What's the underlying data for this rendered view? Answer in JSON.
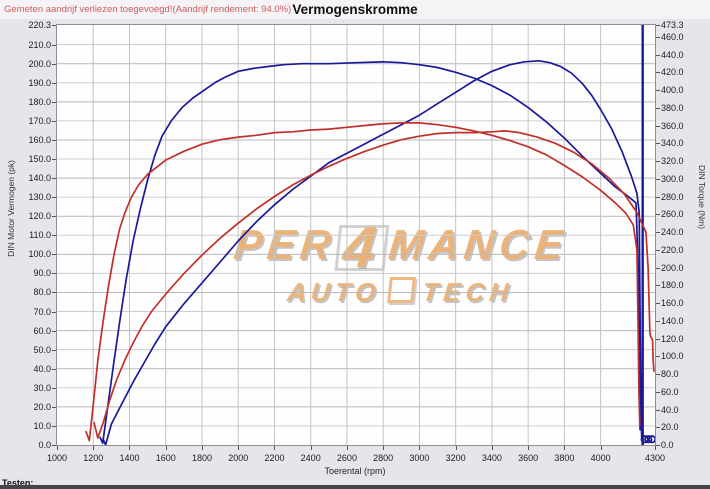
{
  "header": {
    "notice": "Gemeten aandrijf verliezen toegevoegd!(Aandrijf rendement: 94.0%)",
    "title": "Vermogenskromme"
  },
  "footer": {
    "partial_label": "Testen:"
  },
  "watermark": {
    "line1_left": "PER",
    "line1_digit": "4",
    "line1_right": "MANCE",
    "line2_left": "AUTO",
    "line2_right": "TECH"
  },
  "colors": {
    "notice_red": "#cd5c5c",
    "curve_blue": "#19199a",
    "curve_red": "#c0302a",
    "grid_gray": "#c7c7c7",
    "watermark_orange": "#e9a45c"
  },
  "chart_data": {
    "type": "line",
    "title": "Vermogenskromme",
    "xlabel": "Toerental (rpm)",
    "ylabel_left": "DIN Motor Vermogen (pk)",
    "ylabel_right": "DIN Torque (Nm)",
    "x_range": [
      1000,
      4300
    ],
    "y_left_range": [
      0,
      220.3
    ],
    "y_right_range": [
      0,
      473.3
    ],
    "grid": true,
    "legend": "none",
    "x_ticks": [
      1000,
      1200,
      1400,
      1600,
      1800,
      2000,
      2200,
      2400,
      2600,
      2800,
      3000,
      3200,
      3400,
      3600,
      3800,
      4000,
      4300
    ],
    "y_left_ticks": [
      0,
      10,
      20,
      30,
      40,
      50,
      60,
      70,
      80,
      90,
      100,
      110,
      120,
      130,
      140,
      150,
      160,
      170,
      180,
      190,
      200,
      210,
      220.3
    ],
    "y_right_ticks": [
      0,
      20,
      40,
      60,
      80,
      100,
      120,
      140,
      160,
      180,
      200,
      220,
      240,
      260,
      280,
      300,
      320,
      340,
      360,
      380,
      400,
      420,
      440,
      460,
      473.3
    ],
    "marker_line": {
      "rpm": 4232,
      "color": "#19199a"
    },
    "end_markers": {
      "axis": "left",
      "color": "#19199a",
      "points": [
        [
          4243,
          3
        ],
        [
          4263,
          3
        ],
        [
          4284,
          3
        ]
      ]
    },
    "series": [
      {
        "name": "power-run-a-pk",
        "color": "#19199a",
        "axis": "left",
        "peak": "201 pk @ 2800 rpm",
        "points": [
          [
            1238,
            4
          ],
          [
            1252,
            1
          ],
          [
            1280,
            20
          ],
          [
            1312,
            42
          ],
          [
            1345,
            64
          ],
          [
            1380,
            86
          ],
          [
            1420,
            107
          ],
          [
            1460,
            124
          ],
          [
            1500,
            139
          ],
          [
            1540,
            152
          ],
          [
            1580,
            162
          ],
          [
            1630,
            170
          ],
          [
            1690,
            177
          ],
          [
            1750,
            182
          ],
          [
            1810,
            186
          ],
          [
            1870,
            190
          ],
          [
            1930,
            193
          ],
          [
            2000,
            196
          ],
          [
            2080,
            197.5
          ],
          [
            2160,
            198.5
          ],
          [
            2250,
            199.5
          ],
          [
            2350,
            200
          ],
          [
            2500,
            200
          ],
          [
            2650,
            200.5
          ],
          [
            2800,
            201
          ],
          [
            2900,
            200.5
          ],
          [
            3000,
            199.5
          ],
          [
            3100,
            198
          ],
          [
            3200,
            195.5
          ],
          [
            3300,
            192.5
          ],
          [
            3400,
            188.5
          ],
          [
            3500,
            183.5
          ],
          [
            3600,
            177
          ],
          [
            3700,
            169.5
          ],
          [
            3800,
            161
          ],
          [
            3900,
            151.5
          ],
          [
            4000,
            142.5
          ],
          [
            4080,
            135.5
          ],
          [
            4150,
            130.5
          ],
          [
            4195,
            127
          ],
          [
            4207,
            95
          ],
          [
            4213,
            35
          ],
          [
            4218,
            8
          ]
        ]
      },
      {
        "name": "power-run-b-pk",
        "color": "#19199a",
        "axis": "left",
        "peak": "201.5 pk @ 3660 rpm",
        "points": [
          [
            1255,
            3
          ],
          [
            1268,
            0
          ],
          [
            1300,
            11
          ],
          [
            1360,
            22
          ],
          [
            1420,
            33
          ],
          [
            1480,
            43
          ],
          [
            1540,
            53
          ],
          [
            1600,
            62
          ],
          [
            1700,
            74
          ],
          [
            1800,
            85
          ],
          [
            1900,
            96
          ],
          [
            2000,
            107
          ],
          [
            2100,
            117
          ],
          [
            2200,
            126
          ],
          [
            2300,
            134
          ],
          [
            2400,
            141
          ],
          [
            2500,
            148
          ],
          [
            2600,
            153
          ],
          [
            2700,
            158
          ],
          [
            2800,
            163
          ],
          [
            2900,
            168
          ],
          [
            3000,
            173
          ],
          [
            3100,
            179
          ],
          [
            3200,
            185
          ],
          [
            3300,
            191
          ],
          [
            3400,
            196
          ],
          [
            3500,
            199.5
          ],
          [
            3580,
            201
          ],
          [
            3660,
            201.5
          ],
          [
            3720,
            200.5
          ],
          [
            3780,
            198.5
          ],
          [
            3840,
            195
          ],
          [
            3900,
            189.5
          ],
          [
            3950,
            183.5
          ],
          [
            4000,
            176
          ],
          [
            4060,
            166
          ],
          [
            4120,
            153.5
          ],
          [
            4170,
            141
          ],
          [
            4200,
            132
          ],
          [
            4213,
            122
          ],
          [
            4219,
            55
          ],
          [
            4223,
            15
          ],
          [
            4227,
            3
          ]
        ]
      },
      {
        "name": "torque-run-a-nm",
        "color": "#c0302a",
        "axis": "right",
        "peak": "363 Nm @ 2950 rpm",
        "points": [
          [
            1160,
            15
          ],
          [
            1178,
            5
          ],
          [
            1200,
            45
          ],
          [
            1225,
            95
          ],
          [
            1255,
            140
          ],
          [
            1285,
            180
          ],
          [
            1315,
            215
          ],
          [
            1345,
            243
          ],
          [
            1375,
            262
          ],
          [
            1410,
            279
          ],
          [
            1450,
            293
          ],
          [
            1500,
            305
          ],
          [
            1550,
            313
          ],
          [
            1600,
            321
          ],
          [
            1700,
            331
          ],
          [
            1800,
            339
          ],
          [
            1900,
            344
          ],
          [
            2000,
            347
          ],
          [
            2100,
            349
          ],
          [
            2200,
            352
          ],
          [
            2300,
            353
          ],
          [
            2400,
            355
          ],
          [
            2500,
            356
          ],
          [
            2600,
            358
          ],
          [
            2700,
            360
          ],
          [
            2800,
            362
          ],
          [
            2900,
            363
          ],
          [
            3000,
            363
          ],
          [
            3100,
            361
          ],
          [
            3200,
            358
          ],
          [
            3300,
            354
          ],
          [
            3400,
            349
          ],
          [
            3500,
            343
          ],
          [
            3600,
            336
          ],
          [
            3700,
            327
          ],
          [
            3800,
            315
          ],
          [
            3900,
            302
          ],
          [
            4000,
            287
          ],
          [
            4080,
            273
          ],
          [
            4140,
            261
          ],
          [
            4180,
            248
          ],
          [
            4200,
            220
          ],
          [
            4206,
            140
          ],
          [
            4211,
            60
          ],
          [
            4216,
            22
          ]
        ]
      },
      {
        "name": "torque-run-b-nm",
        "color": "#c0302a",
        "axis": "right",
        "peak": "354 Nm @ 3475 rpm",
        "points": [
          [
            1205,
            25
          ],
          [
            1225,
            8
          ],
          [
            1255,
            25
          ],
          [
            1290,
            50
          ],
          [
            1330,
            74
          ],
          [
            1375,
            96
          ],
          [
            1420,
            115
          ],
          [
            1470,
            134
          ],
          [
            1520,
            150
          ],
          [
            1600,
            170
          ],
          [
            1700,
            193
          ],
          [
            1800,
            214
          ],
          [
            1900,
            233
          ],
          [
            2000,
            250
          ],
          [
            2100,
            266
          ],
          [
            2200,
            280
          ],
          [
            2300,
            293
          ],
          [
            2400,
            304
          ],
          [
            2500,
            314
          ],
          [
            2600,
            323
          ],
          [
            2700,
            331
          ],
          [
            2800,
            338
          ],
          [
            2900,
            344
          ],
          [
            3000,
            348
          ],
          [
            3100,
            351
          ],
          [
            3200,
            352
          ],
          [
            3300,
            352
          ],
          [
            3400,
            353
          ],
          [
            3475,
            354
          ],
          [
            3550,
            352
          ],
          [
            3650,
            347
          ],
          [
            3750,
            340
          ],
          [
            3850,
            330
          ],
          [
            3950,
            317
          ],
          [
            4050,
            300
          ],
          [
            4130,
            283
          ],
          [
            4200,
            262
          ],
          [
            4250,
            240
          ],
          [
            4262,
            200
          ],
          [
            4268,
            155
          ],
          [
            4272,
            126
          ],
          [
            4278,
            121
          ],
          [
            4286,
            119
          ],
          [
            4290,
            95
          ],
          [
            4294,
            83
          ]
        ]
      }
    ]
  }
}
